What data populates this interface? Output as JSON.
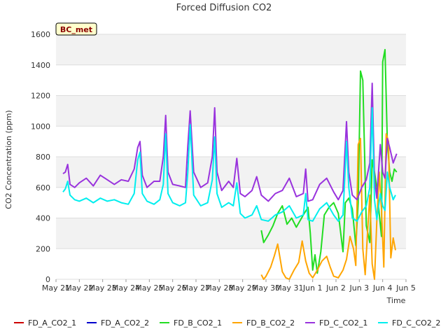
{
  "chart_data": {
    "type": "line",
    "title": "Forced Diffusion CO2",
    "xlabel": "Time",
    "ylabel": "CO2 Concentration (ppm)",
    "badge": "BC_met",
    "ylim": [
      0,
      1600
    ],
    "xlim": [
      0,
      15
    ],
    "yticks": [
      0,
      200,
      400,
      600,
      800,
      1000,
      1200,
      1400,
      1600
    ],
    "xticks": [
      "May 21",
      "May 22",
      "May 23",
      "May 24",
      "May 25",
      "May 26",
      "May 27",
      "May 28",
      "May 29",
      "May 30",
      "May 31",
      "Jun 1",
      "Jun 2",
      "Jun 3",
      "Jun 4",
      "Jun 5"
    ],
    "grid": true,
    "band_colors": [
      "#f2f2f2",
      "#ffffff"
    ],
    "legend_position": "bottom",
    "series": [
      {
        "name": "FD_A_CO2_1",
        "color": "#cc0000",
        "x": [],
        "y": []
      },
      {
        "name": "FD_A_CO2_2",
        "color": "#0000cc",
        "x": [],
        "y": []
      },
      {
        "name": "FD_B_CO2_1",
        "color": "#22dd22",
        "x": [
          8.8,
          8.9,
          9.1,
          9.3,
          9.5,
          9.7,
          9.9,
          10.1,
          10.3,
          10.6,
          10.8,
          10.9,
          11.0,
          11.1,
          11.2,
          11.35,
          11.5,
          11.7,
          11.9,
          12.1,
          12.3,
          12.4,
          12.55,
          12.7,
          12.85,
          12.95,
          13.05,
          13.15,
          13.3,
          13.45,
          13.55,
          13.65,
          13.75,
          13.85,
          13.95,
          14.0,
          14.1,
          14.2,
          14.3,
          14.4,
          14.5,
          14.6
        ],
        "y": [
          320,
          240,
          290,
          350,
          430,
          480,
          360,
          400,
          340,
          420,
          470,
          300,
          60,
          160,
          40,
          180,
          420,
          470,
          500,
          430,
          180,
          500,
          530,
          460,
          220,
          500,
          1360,
          1300,
          350,
          240,
          780,
          700,
          600,
          430,
          280,
          1420,
          1500,
          900,
          700,
          640,
          720,
          700
        ]
      },
      {
        "name": "FD_B_CO2_2",
        "color": "#ffa500",
        "x": [
          8.8,
          8.9,
          9.0,
          9.2,
          9.35,
          9.5,
          9.7,
          9.85,
          10.0,
          10.2,
          10.4,
          10.55,
          10.7,
          10.85,
          11.0,
          11.2,
          11.4,
          11.6,
          11.75,
          11.9,
          12.1,
          12.3,
          12.45,
          12.6,
          12.75,
          12.85,
          12.95,
          13.05,
          13.15,
          13.25,
          13.35,
          13.45,
          13.55,
          13.65,
          13.75,
          13.85,
          13.95,
          14.05,
          14.15,
          14.25,
          14.35,
          14.45,
          14.55
        ],
        "y": [
          30,
          0,
          20,
          80,
          150,
          230,
          50,
          10,
          0,
          60,
          110,
          250,
          120,
          40,
          10,
          60,
          120,
          150,
          80,
          20,
          10,
          60,
          130,
          280,
          200,
          90,
          880,
          920,
          200,
          30,
          300,
          550,
          100,
          0,
          380,
          700,
          450,
          80,
          950,
          900,
          140,
          270,
          190
        ]
      },
      {
        "name": "FD_C_CO2_1",
        "color": "#9933dd",
        "x": [
          0.3,
          0.4,
          0.5,
          0.6,
          0.8,
          1.0,
          1.3,
          1.6,
          1.9,
          2.2,
          2.5,
          2.8,
          3.1,
          3.35,
          3.5,
          3.6,
          3.7,
          3.9,
          4.2,
          4.45,
          4.6,
          4.7,
          4.8,
          5.0,
          5.3,
          5.55,
          5.65,
          5.75,
          5.9,
          6.2,
          6.5,
          6.7,
          6.8,
          6.9,
          7.1,
          7.4,
          7.6,
          7.75,
          7.9,
          8.1,
          8.4,
          8.6,
          8.8,
          9.1,
          9.4,
          9.7,
          10.0,
          10.3,
          10.6,
          10.7,
          10.8,
          11.0,
          11.3,
          11.6,
          11.9,
          12.1,
          12.3,
          12.45,
          12.55,
          12.7,
          12.9,
          13.1,
          13.3,
          13.45,
          13.55,
          13.65,
          13.75,
          13.9,
          14.0,
          14.1,
          14.2,
          14.3,
          14.45,
          14.6
        ],
        "y": [
          690,
          700,
          750,
          620,
          600,
          630,
          660,
          610,
          680,
          650,
          620,
          650,
          640,
          720,
          860,
          900,
          680,
          600,
          640,
          640,
          800,
          1070,
          700,
          620,
          610,
          600,
          870,
          1100,
          700,
          600,
          630,
          800,
          1120,
          700,
          580,
          640,
          600,
          790,
          560,
          540,
          580,
          670,
          550,
          510,
          560,
          580,
          660,
          540,
          560,
          720,
          510,
          520,
          620,
          660,
          570,
          520,
          580,
          1030,
          700,
          550,
          520,
          600,
          650,
          760,
          1280,
          650,
          530,
          880,
          700,
          660,
          920,
          860,
          760,
          820
        ]
      },
      {
        "name": "FD_C_CO2_2",
        "color": "#00eeee",
        "x": [
          0.3,
          0.4,
          0.5,
          0.6,
          0.8,
          1.0,
          1.3,
          1.6,
          1.9,
          2.2,
          2.5,
          2.8,
          3.1,
          3.35,
          3.5,
          3.6,
          3.7,
          3.9,
          4.2,
          4.45,
          4.6,
          4.7,
          4.8,
          5.0,
          5.3,
          5.55,
          5.65,
          5.75,
          5.9,
          6.2,
          6.5,
          6.7,
          6.8,
          6.9,
          7.1,
          7.4,
          7.6,
          7.75,
          7.9,
          8.1,
          8.4,
          8.6,
          8.8,
          9.1,
          9.4,
          9.7,
          10.0,
          10.3,
          10.6,
          10.7,
          10.8,
          11.0,
          11.3,
          11.6,
          11.9,
          12.1,
          12.3,
          12.45,
          12.55,
          12.7,
          12.9,
          13.1,
          13.3,
          13.45,
          13.55,
          13.65,
          13.75,
          13.9,
          14.0,
          14.1,
          14.2,
          14.3,
          14.45,
          14.55
        ],
        "y": [
          570,
          590,
          640,
          550,
          520,
          510,
          530,
          500,
          530,
          510,
          520,
          500,
          490,
          560,
          780,
          830,
          560,
          510,
          490,
          520,
          620,
          950,
          560,
          500,
          480,
          500,
          700,
          1010,
          550,
          480,
          500,
          650,
          930,
          560,
          470,
          500,
          480,
          630,
          430,
          400,
          420,
          480,
          390,
          380,
          420,
          440,
          480,
          400,
          420,
          560,
          390,
          380,
          460,
          500,
          420,
          380,
          420,
          900,
          600,
          400,
          380,
          440,
          480,
          600,
          1120,
          520,
          390,
          560,
          480,
          450,
          700,
          600,
          520,
          550
        ]
      }
    ]
  }
}
